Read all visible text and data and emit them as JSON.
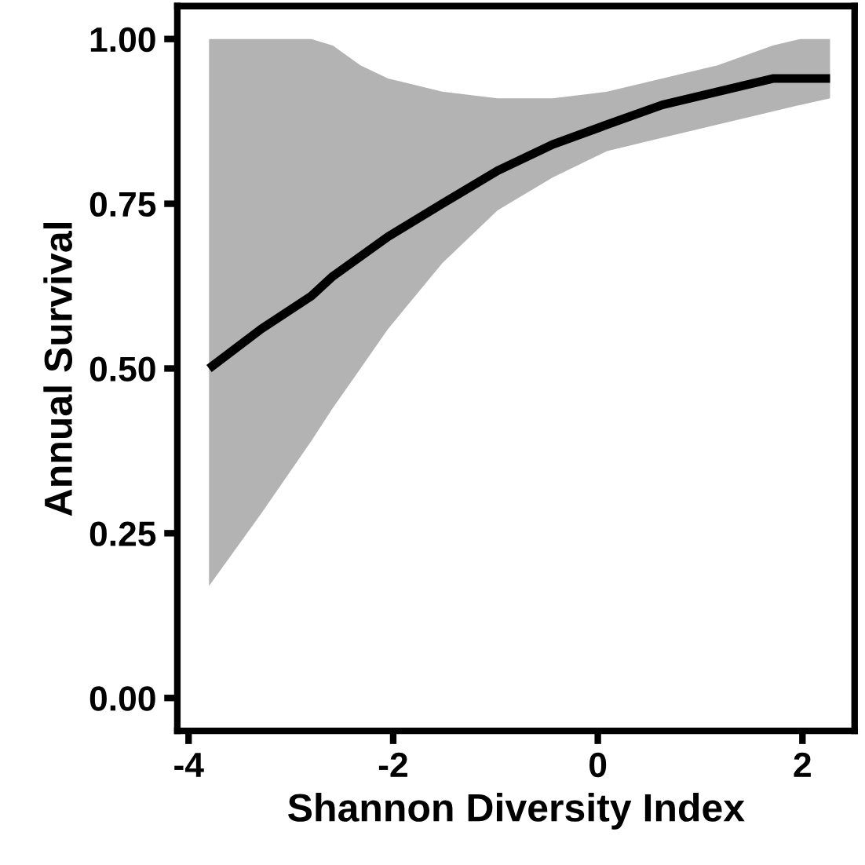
{
  "chart_data": {
    "type": "line",
    "xlabel": "Shannon Diversity Index",
    "ylabel": "Annual Survival",
    "series": [
      {
        "color": "#000000",
        "x": [
          -3.8,
          -3.29,
          -2.8,
          -2.59,
          -2.32,
          -2.05,
          -1.52,
          -0.98,
          -0.44,
          0.09,
          0.63,
          1.17,
          1.71,
          1.98,
          2.27
        ],
        "values": [
          0.5,
          0.56,
          0.61,
          0.64,
          0.67,
          0.7,
          0.75,
          0.8,
          0.84,
          0.87,
          0.9,
          0.92,
          0.94,
          0.94,
          0.94
        ],
        "upper": [
          1.0,
          1.0,
          1.0,
          0.99,
          0.96,
          0.94,
          0.92,
          0.91,
          0.91,
          0.92,
          0.94,
          0.96,
          0.99,
          1.0,
          1.0
        ],
        "lower": [
          0.17,
          0.28,
          0.39,
          0.44,
          0.5,
          0.56,
          0.66,
          0.74,
          0.79,
          0.83,
          0.85,
          0.87,
          0.89,
          0.9,
          0.91
        ]
      }
    ],
    "xlim": [
      -4.11,
      2.51
    ],
    "ylim": [
      -0.05,
      1.05
    ],
    "xticks": [
      {
        "value": -4,
        "label": "-4"
      },
      {
        "value": -2,
        "label": "-2"
      },
      0,
      2
    ],
    "yticks": [
      {
        "value": 0,
        "label": "0.00"
      },
      {
        "value": 0.25,
        "label": "0.25"
      },
      {
        "value": 0.5,
        "label": "0.50"
      },
      {
        "value": 0.75,
        "label": "0.75"
      },
      {
        "value": 1,
        "label": "1.00"
      }
    ],
    "grid": false,
    "legend": false,
    "marker": "none",
    "line_style": "solid"
  }
}
